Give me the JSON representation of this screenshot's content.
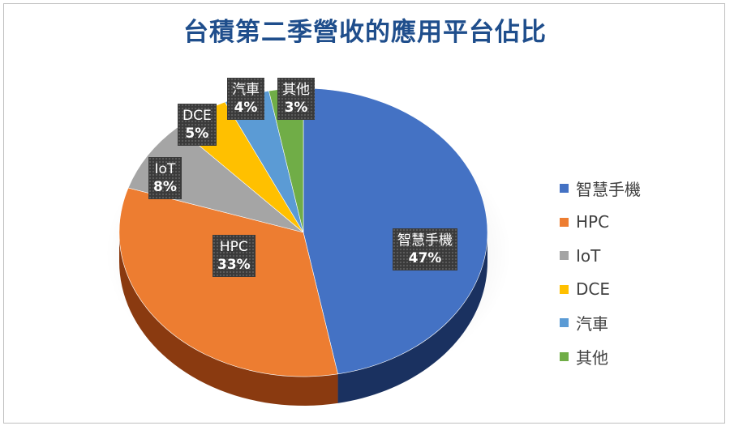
{
  "chart_data": {
    "type": "pie",
    "title": "台積第二季營收的應用平台佔比",
    "legend_position": "right",
    "slices": [
      {
        "name": "智慧手機",
        "value": 47,
        "label": "47%",
        "color": "#4472c4",
        "dark": "#1a3160"
      },
      {
        "name": "HPC",
        "value": 33,
        "label": "33%",
        "color": "#ed7d31",
        "dark": "#8a3a10"
      },
      {
        "name": "IoT",
        "value": 8,
        "label": "8%",
        "color": "#a5a5a5",
        "dark": "#5e5e5e"
      },
      {
        "name": "DCE",
        "value": 5,
        "label": "5%",
        "color": "#ffc000",
        "dark": "#9a7000"
      },
      {
        "name": "汽車",
        "value": 4,
        "label": "4%",
        "color": "#5b9bd5",
        "dark": "#2c5a86"
      },
      {
        "name": "其他",
        "value": 3,
        "label": "3%",
        "color": "#70ad47",
        "dark": "#3d6a22"
      }
    ]
  }
}
